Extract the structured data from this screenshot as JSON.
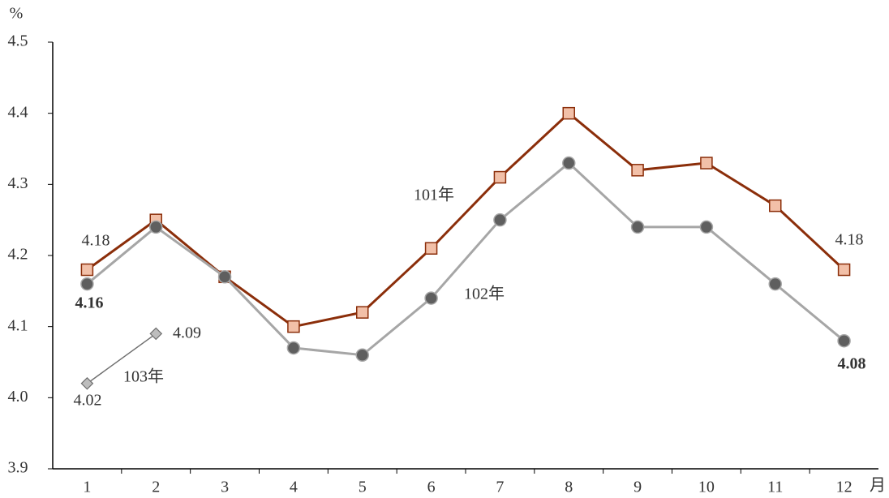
{
  "chart_data": {
    "type": "line",
    "y_label": "%",
    "x_label": "月",
    "categories": [
      "1",
      "2",
      "3",
      "4",
      "5",
      "6",
      "7",
      "8",
      "9",
      "10",
      "11",
      "12"
    ],
    "series": [
      {
        "name": "101年",
        "color": "#8b2e0a",
        "marker": "square",
        "marker_fill": "#f2c0a8",
        "values": [
          4.18,
          4.25,
          4.17,
          4.1,
          4.12,
          4.21,
          4.31,
          4.4,
          4.32,
          4.33,
          4.27,
          4.18
        ],
        "value_labels": [
          "4.18",
          null,
          null,
          null,
          null,
          null,
          null,
          null,
          null,
          null,
          null,
          "4.18"
        ]
      },
      {
        "name": "102年",
        "color": "#a6a6a6",
        "marker": "circle",
        "marker_fill": "#5f5f5f",
        "values": [
          4.16,
          4.24,
          4.17,
          4.07,
          4.06,
          4.14,
          4.25,
          4.33,
          4.24,
          4.24,
          4.16,
          4.08
        ],
        "value_labels": [
          "4.16",
          null,
          null,
          null,
          null,
          null,
          null,
          null,
          null,
          null,
          null,
          "4.08"
        ]
      },
      {
        "name": "103年",
        "color": "#6e6e6e",
        "marker": "diamond",
        "marker_fill": "#bdbdbd",
        "values": [
          4.02,
          4.09,
          null,
          null,
          null,
          null,
          null,
          null,
          null,
          null,
          null,
          null
        ],
        "value_labels": [
          "4.02",
          "4.09",
          null,
          null,
          null,
          null,
          null,
          null,
          null,
          null,
          null,
          null
        ]
      }
    ],
    "ylim": [
      3.9,
      4.5
    ],
    "yticks": [
      3.9,
      {
        "value": 4,
        "label": "4.0"
      },
      4.1,
      4.2,
      4.3,
      4.4,
      4.5
    ],
    "grid": false
  }
}
